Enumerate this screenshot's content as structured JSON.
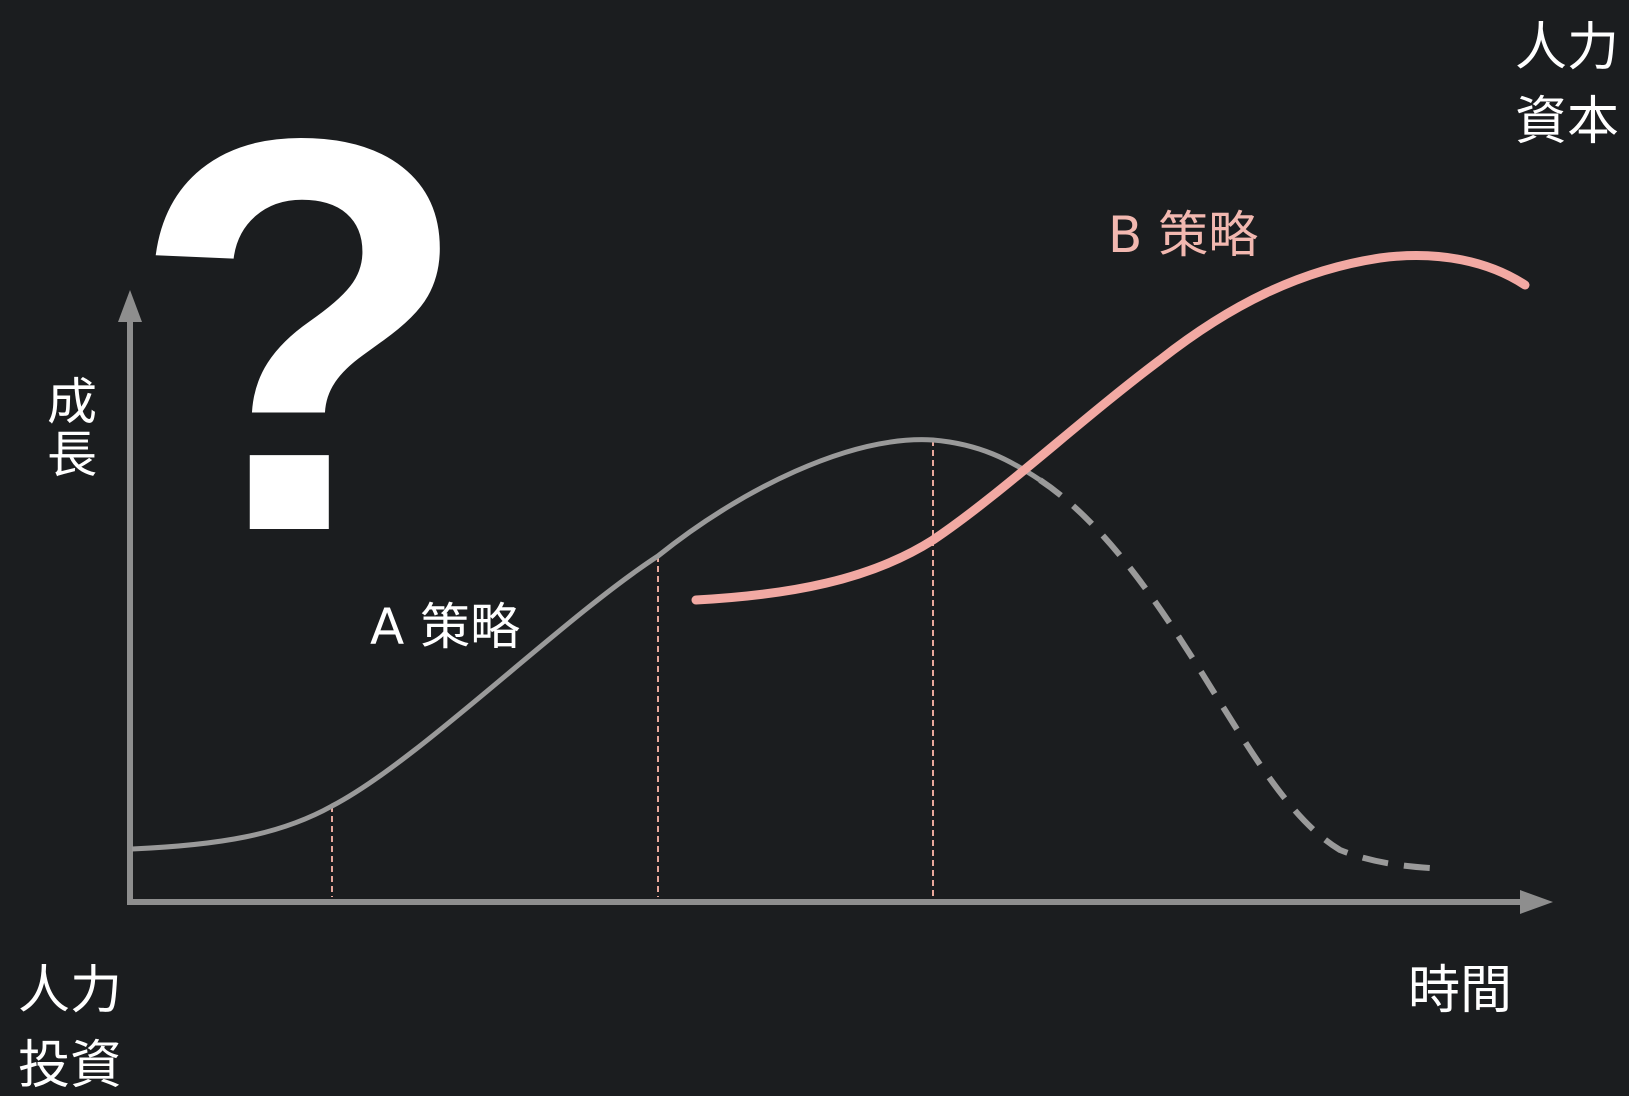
{
  "figure": {
    "question_mark": "?",
    "y_axis_label": "成長",
    "x_axis_label": "時間",
    "bottom_left_label_line1": "人力",
    "bottom_left_label_line2": "投資",
    "top_right_label_line1": "人力",
    "top_right_label_line2": "資本",
    "curve_a_label": "A 策略",
    "curve_b_label": "B 策略"
  },
  "colors": {
    "background": "#1b1d1f",
    "axis": "#8e8e8e",
    "curve_a": "#9a9a9a",
    "curve_b": "#f2a9a3",
    "guide_lines": "#e8a89c",
    "text": "#ffffff",
    "curve_b_label": "#f2b8b0"
  },
  "chart_data": {
    "type": "line",
    "description_free": true,
    "x_axis_label": "時間",
    "y_axis_label": "成長",
    "series": [
      {
        "name": "A 策略",
        "style": "solid-then-dashed",
        "shape": "s-curve rising to peak then declining"
      },
      {
        "name": "B 策略",
        "style": "solid",
        "shape": "s-curve starting mid-chart rising higher"
      }
    ]
  }
}
